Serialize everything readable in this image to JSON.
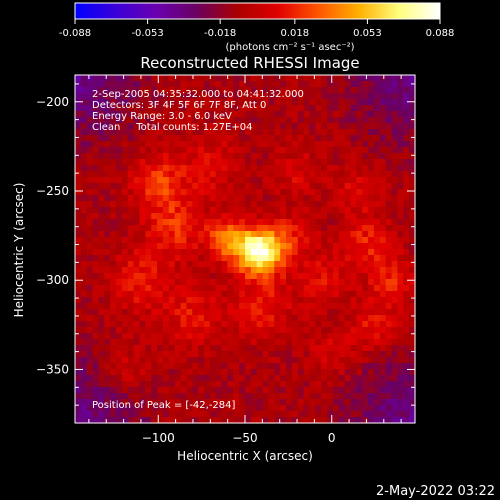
{
  "colorbar": {
    "ticks": [
      "-0.088",
      "-0.053",
      "-0.018",
      "0.018",
      "0.053",
      "0.088"
    ],
    "tick_values": [
      -0.088,
      -0.053,
      -0.018,
      0.018,
      0.053,
      0.088
    ],
    "range": [
      -0.088,
      0.088
    ],
    "units": "(photons cm⁻² s⁻¹ asec⁻²)",
    "colors": [
      "#0000ff",
      "#3a00d8",
      "#6a00b0",
      "#6a0060",
      "#aa0000",
      "#e00000",
      "#ff5500",
      "#ffb000",
      "#ffff80",
      "#ffffff"
    ]
  },
  "chart_data": {
    "type": "heatmap",
    "title": "Reconstructed RHESSI Image",
    "xlabel": "Heliocentric X (arcsec)",
    "ylabel": "Heliocentric Y (arcsec)",
    "xlim": [
      -148,
      48
    ],
    "ylim": [
      -380,
      -185
    ],
    "x_ticks": [
      -100,
      -50,
      0
    ],
    "x_tick_labels": [
      "−100",
      "−50",
      "0"
    ],
    "y_ticks": [
      -200,
      -250,
      -300,
      -350
    ],
    "y_tick_labels": [
      "−200",
      "−250",
      "−300",
      "−350"
    ],
    "annotations": [
      "2-Sep-2005 04:35:32.000 to 04:41:32.000",
      "Detectors: 3F 4F 5F 6F 7F 8F, Att 0",
      "Energy Range: 3.0 - 6.0 keV",
      "Clean     Total counts: 1.27E+04"
    ],
    "peak_label": "Position of Peak = [-42,-284]",
    "peak": [
      -42,
      -284
    ],
    "peak_value": 0.088,
    "sources": [
      {
        "x": -42,
        "y": -284,
        "amp": 0.088,
        "sigma": 9
      },
      {
        "x": -60,
        "y": -277,
        "amp": 0.045,
        "sigma": 8
      },
      {
        "x": -25,
        "y": -278,
        "amp": 0.025,
        "sigma": 10
      },
      {
        "x": -100,
        "y": -245,
        "amp": 0.03,
        "sigma": 11
      },
      {
        "x": -90,
        "y": -270,
        "amp": 0.028,
        "sigma": 12
      },
      {
        "x": -110,
        "y": -300,
        "amp": 0.025,
        "sigma": 12
      },
      {
        "x": -80,
        "y": -320,
        "amp": 0.022,
        "sigma": 12
      },
      {
        "x": -40,
        "y": -315,
        "amp": 0.025,
        "sigma": 12
      },
      {
        "x": -5,
        "y": -300,
        "amp": 0.02,
        "sigma": 10
      },
      {
        "x": 20,
        "y": -280,
        "amp": 0.028,
        "sigma": 10
      },
      {
        "x": 35,
        "y": -300,
        "amp": 0.026,
        "sigma": 9
      },
      {
        "x": 25,
        "y": -325,
        "amp": 0.022,
        "sigma": 10
      },
      {
        "x": -70,
        "y": -235,
        "amp": 0.02,
        "sigma": 12
      },
      {
        "x": -20,
        "y": -240,
        "amp": 0.016,
        "sigma": 10
      },
      {
        "x": 15,
        "y": -250,
        "amp": 0.018,
        "sigma": 10
      },
      {
        "x": -120,
        "y": -350,
        "amp": 0.016,
        "sigma": 10
      },
      {
        "x": 0,
        "y": -340,
        "amp": 0.014,
        "sigma": 10
      }
    ],
    "background": -0.01
  },
  "footer": {
    "date": "2-May-2022 03:22"
  }
}
